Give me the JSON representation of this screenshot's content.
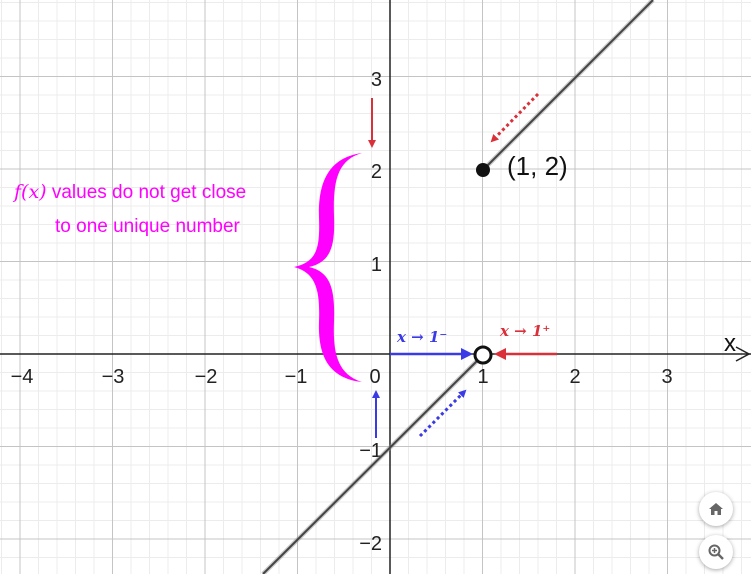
{
  "axes": {
    "x_name": "x",
    "x_ticks": [
      "−4",
      "−3",
      "−2",
      "−1",
      "0",
      "1",
      "2",
      "3"
    ],
    "y_ticks": [
      "3",
      "2",
      "1",
      "−1",
      "−2"
    ]
  },
  "point": {
    "label": "(1, 2)",
    "x": 1,
    "y": 2
  },
  "open_point": {
    "x": 1,
    "y": 0
  },
  "annotation": {
    "fx": "f(x)",
    "line1_rest": " values do not get close",
    "line2": "to one unique number"
  },
  "limits": {
    "left": "x → 1⁻",
    "right": "x → 1⁺"
  },
  "colors": {
    "magenta": "#ff00ff",
    "blue": "#3a3ae6",
    "red": "#d9303a",
    "line": "#444444"
  },
  "controls": {
    "home": "home-icon",
    "zoom": "zoom-icon"
  }
}
